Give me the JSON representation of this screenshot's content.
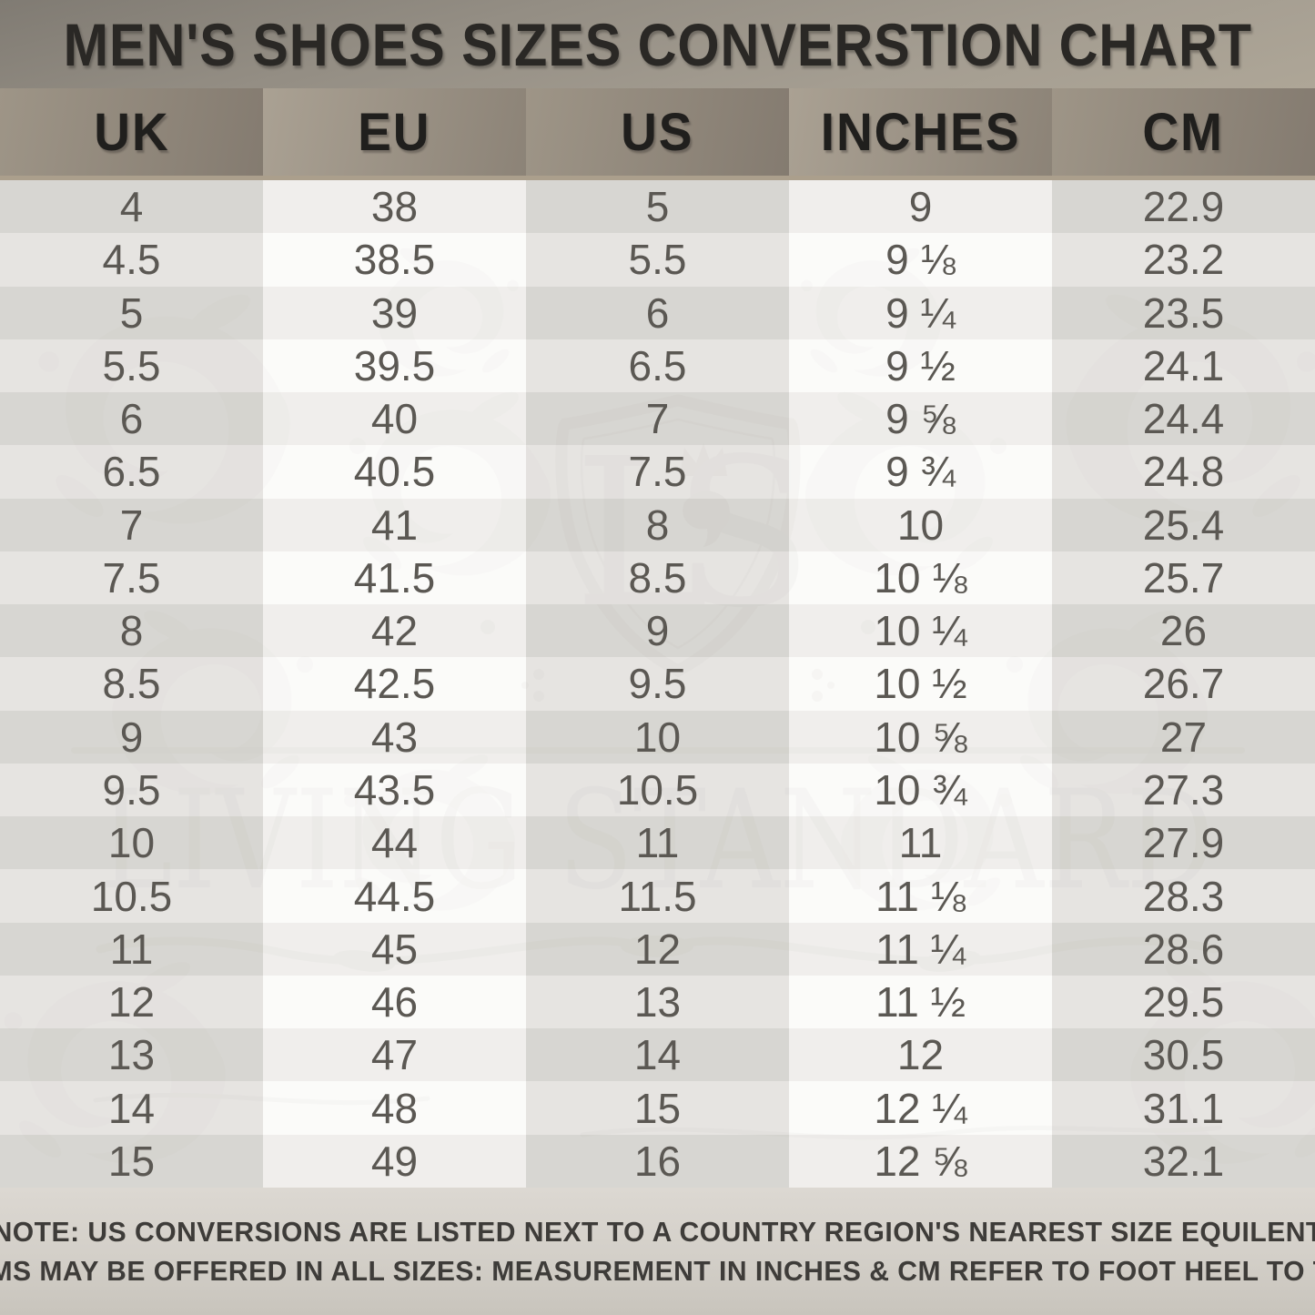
{
  "title": "MEN'S SHOES SIZES CONVERSTION CHART",
  "chart_data": {
    "type": "table",
    "title": "MEN'S SHOES SIZES CONVERSTION CHART",
    "columns": [
      "UK",
      "EU",
      "US",
      "INCHES",
      "CM"
    ],
    "rows": [
      [
        "4",
        "38",
        "5",
        "9",
        "22.9"
      ],
      [
        "4.5",
        "38.5",
        "5.5",
        "9 ⅛",
        "23.2"
      ],
      [
        "5",
        "39",
        "6",
        "9 ¼",
        "23.5"
      ],
      [
        "5.5",
        "39.5",
        "6.5",
        "9 ½",
        "24.1"
      ],
      [
        "6",
        "40",
        "7",
        "9 ⅝",
        "24.4"
      ],
      [
        "6.5",
        "40.5",
        "7.5",
        "9 ¾",
        "24.8"
      ],
      [
        "7",
        "41",
        "8",
        "10",
        "25.4"
      ],
      [
        "7.5",
        "41.5",
        "8.5",
        "10 ⅛",
        "25.7"
      ],
      [
        "8",
        "42",
        "9",
        "10 ¼",
        "26"
      ],
      [
        "8.5",
        "42.5",
        "9.5",
        "10 ½",
        "26.7"
      ],
      [
        "9",
        "43",
        "10",
        "10 ⅝",
        "27"
      ],
      [
        "9.5",
        "43.5",
        "10.5",
        "10 ¾",
        "27.3"
      ],
      [
        "10",
        "44",
        "11",
        "11",
        "27.9"
      ],
      [
        "10.5",
        "44.5",
        "11.5",
        "11 ⅛",
        "28.3"
      ],
      [
        "11",
        "45",
        "12",
        "11 ¼",
        "28.6"
      ],
      [
        "12",
        "46",
        "13",
        "11 ½",
        "29.5"
      ],
      [
        "13",
        "47",
        "14",
        "12",
        "30.5"
      ],
      [
        "14",
        "48",
        "15",
        "12 ¼",
        "31.1"
      ],
      [
        "15",
        "49",
        "16",
        "12 ⅝",
        "32.1"
      ]
    ]
  },
  "watermark": {
    "monogram": "LS",
    "brand": "LIVING STANDARD"
  },
  "note": {
    "label": "NOTE:",
    "line1": "US CONVERSIONS ARE LISTED NEXT TO A COUNTRY REGION'S NEAREST SIZE EQUILENT",
    "line2": "ITEMS MAY BE OFFERED IN ALL SIZES: MEASUREMENT IN INCHES & CM REFER TO FOOT HEEL TO TOE"
  },
  "colors": {
    "header_band_dark": "#847b70",
    "header_band_light": "#aaa193",
    "title_band": "#a49d91",
    "header_divider": "#ab9f8c",
    "cell_text": "#5b5853",
    "header_text": "#201f1d",
    "note_text": "#3e3c39",
    "watermark_gray": "#d7d4d0",
    "row_dark_gray": "#d9d7d4",
    "row_white": "#fbfbfa"
  }
}
